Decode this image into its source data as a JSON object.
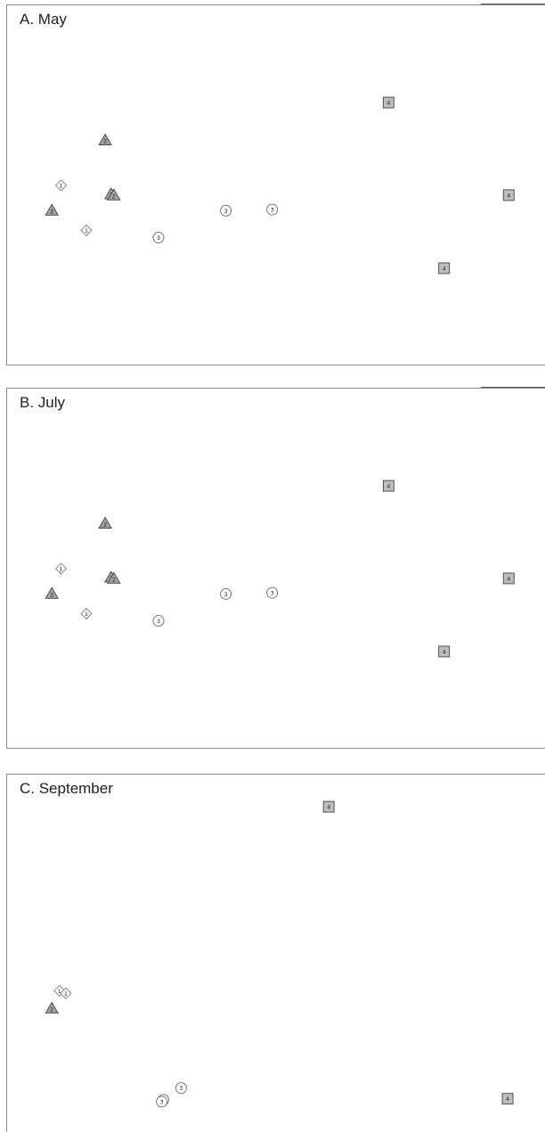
{
  "chart_data": [
    {
      "type": "scatter",
      "title": "A. May",
      "xlabel": "",
      "ylabel": "",
      "xlim": [
        0,
        100
      ],
      "ylim": [
        0,
        100
      ],
      "grid": false,
      "groups": [
        {
          "label": "1",
          "shape": "diamond",
          "fill": "#ffffff",
          "stroke": "#7a7aa8"
        },
        {
          "label": "2",
          "shape": "triangle",
          "fill": "#a3a3a3",
          "stroke": "#444444"
        },
        {
          "label": "3",
          "shape": "circle",
          "fill": "#ffffff",
          "stroke": "#666666"
        },
        {
          "label": "4",
          "shape": "square",
          "fill": "#bdbdbd",
          "stroke": "#444444"
        }
      ],
      "points": [
        {
          "x": 10,
          "y": 50,
          "group": 0
        },
        {
          "x": 14.7,
          "y": 37.5,
          "group": 0
        },
        {
          "x": 8.3,
          "y": 43,
          "group": 1
        },
        {
          "x": 18.2,
          "y": 62.5,
          "group": 1
        },
        {
          "x": 19.3,
          "y": 47.5,
          "group": 1
        },
        {
          "x": 19.8,
          "y": 47.2,
          "group": 1
        },
        {
          "x": 28.1,
          "y": 35.5,
          "group": 2
        },
        {
          "x": 40.6,
          "y": 43,
          "group": 2
        },
        {
          "x": 49.2,
          "y": 43.3,
          "group": 2
        },
        {
          "x": 70.8,
          "y": 73,
          "group": 3
        },
        {
          "x": 93.1,
          "y": 47.3,
          "group": 3
        },
        {
          "x": 81.1,
          "y": 27,
          "group": 3
        }
      ]
    },
    {
      "type": "scatter",
      "title": "B. July",
      "xlabel": "",
      "ylabel": "",
      "xlim": [
        0,
        100
      ],
      "ylim": [
        0,
        100
      ],
      "grid": false,
      "groups": [
        {
          "label": "1",
          "shape": "diamond",
          "fill": "#ffffff",
          "stroke": "#7a7aa8"
        },
        {
          "label": "2",
          "shape": "triangle",
          "fill": "#a3a3a3",
          "stroke": "#444444"
        },
        {
          "label": "3",
          "shape": "circle",
          "fill": "#ffffff",
          "stroke": "#666666"
        },
        {
          "label": "4",
          "shape": "square",
          "fill": "#bdbdbd",
          "stroke": "#444444"
        }
      ],
      "points": [
        {
          "x": 10,
          "y": 50,
          "group": 0
        },
        {
          "x": 14.7,
          "y": 37.5,
          "group": 0
        },
        {
          "x": 8.3,
          "y": 43,
          "group": 1
        },
        {
          "x": 18.2,
          "y": 62.5,
          "group": 1
        },
        {
          "x": 19.3,
          "y": 47.5,
          "group": 1
        },
        {
          "x": 19.8,
          "y": 47.2,
          "group": 1
        },
        {
          "x": 28.1,
          "y": 35.5,
          "group": 2
        },
        {
          "x": 40.6,
          "y": 43,
          "group": 2
        },
        {
          "x": 49.2,
          "y": 43.3,
          "group": 2
        },
        {
          "x": 70.8,
          "y": 73,
          "group": 3
        },
        {
          "x": 93.1,
          "y": 47.3,
          "group": 3
        },
        {
          "x": 81.1,
          "y": 27,
          "group": 3
        }
      ]
    },
    {
      "type": "scatter",
      "title": "C. September",
      "xlabel": "",
      "ylabel": "",
      "xlim": [
        0,
        100
      ],
      "ylim": [
        0,
        100
      ],
      "grid": false,
      "groups": [
        {
          "label": "1",
          "shape": "diamond",
          "fill": "#ffffff",
          "stroke": "#7a7aa8"
        },
        {
          "label": "2",
          "shape": "triangle",
          "fill": "#a3a3a3",
          "stroke": "#444444"
        },
        {
          "label": "3",
          "shape": "circle",
          "fill": "#ffffff",
          "stroke": "#666666"
        },
        {
          "label": "4",
          "shape": "square",
          "fill": "#bdbdbd",
          "stroke": "#444444"
        }
      ],
      "points": [
        {
          "x": 9.7,
          "y": 39.5,
          "group": 0
        },
        {
          "x": 10.9,
          "y": 38.8,
          "group": 0
        },
        {
          "x": 8.3,
          "y": 34.5,
          "group": 1
        },
        {
          "x": 29,
          "y": 9,
          "group": 2
        },
        {
          "x": 32.3,
          "y": 12.3,
          "group": 2
        },
        {
          "x": 28.7,
          "y": 8.5,
          "group": 2
        },
        {
          "x": 59.7,
          "y": 91,
          "group": 3
        },
        {
          "x": 92.9,
          "y": 9.3,
          "group": 3
        }
      ]
    }
  ]
}
